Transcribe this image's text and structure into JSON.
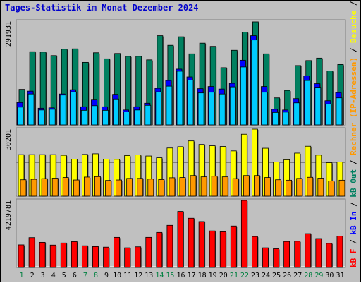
{
  "title": "Tages-Statistik im Monat Dezember 2024",
  "chart_data": [
    {
      "type": "bar",
      "panel": "top",
      "ymax_label": "291931",
      "ylim": [
        0,
        291931
      ],
      "categories": [
        "1",
        "2",
        "3",
        "4",
        "5",
        "6",
        "7",
        "8",
        "9",
        "10",
        "11",
        "12",
        "13",
        "14",
        "15",
        "16",
        "17",
        "18",
        "19",
        "20",
        "21",
        "22",
        "23",
        "24",
        "25",
        "26",
        "27",
        "28",
        "29",
        "30",
        "31"
      ],
      "series": [
        {
          "name": "Anfragen",
          "color": "#008060",
          "values": [
            100000,
            206000,
            205000,
            195000,
            213000,
            214000,
            176000,
            203000,
            186000,
            201000,
            193000,
            193000,
            183000,
            251000,
            224000,
            248000,
            200000,
            230000,
            221000,
            161000,
            210000,
            261000,
            290000,
            200000,
            76000,
            97000,
            167000,
            181000,
            188000,
            152000,
            170000
          ]
        },
        {
          "name": "Dateien",
          "color": "#0000ff",
          "values": [
            63000,
            95000,
            47000,
            48000,
            87000,
            99000,
            51000,
            72000,
            51000,
            86000,
            42000,
            51000,
            61000,
            103000,
            125000,
            157000,
            135000,
            102000,
            108000,
            101000,
            117000,
            182000,
            251000,
            108000,
            44000,
            42000,
            74000,
            138000,
            116000,
            68000,
            91000
          ]
        },
        {
          "name": "Seiten",
          "color": "#00ccff",
          "values": [
            50000,
            87000,
            42000,
            44000,
            84000,
            93000,
            41000,
            54000,
            41000,
            73000,
            37000,
            42000,
            55000,
            93000,
            109000,
            151000,
            126000,
            90000,
            92000,
            87000,
            107000,
            163000,
            239000,
            92000,
            35000,
            36000,
            62000,
            125000,
            106000,
            59000,
            76000
          ]
        }
      ]
    },
    {
      "type": "bar",
      "panel": "middle",
      "ymax_label": "30201",
      "ylim": [
        0,
        30201
      ],
      "categories": [
        "1",
        "2",
        "3",
        "4",
        "5",
        "6",
        "7",
        "8",
        "9",
        "10",
        "11",
        "12",
        "13",
        "14",
        "15",
        "16",
        "17",
        "18",
        "19",
        "20",
        "21",
        "22",
        "23",
        "24",
        "25",
        "26",
        "27",
        "28",
        "29",
        "30",
        "31"
      ],
      "series": [
        {
          "name": "Besuche",
          "color": "#ffff00",
          "values": [
            18700,
            18700,
            18700,
            18700,
            18400,
            16700,
            18800,
            19100,
            16700,
            16600,
            18300,
            18600,
            18100,
            17300,
            21700,
            22300,
            24900,
            23300,
            22700,
            22400,
            20400,
            27900,
            30201,
            21600,
            15400,
            16400,
            19400,
            22500,
            18500,
            15100,
            15400
          ]
        },
        {
          "name": "Rechner (IP-Adressen)",
          "color": "#ff9900",
          "values": [
            7400,
            7600,
            7900,
            8100,
            8400,
            7300,
            8600,
            8800,
            7100,
            7300,
            8000,
            8000,
            7700,
            7500,
            8300,
            8400,
            9300,
            8700,
            9000,
            8700,
            7900,
            9300,
            9300,
            8400,
            7400,
            7200,
            8000,
            8500,
            8100,
            6800,
            7200
          ]
        }
      ]
    },
    {
      "type": "bar",
      "panel": "bottom",
      "ymax_label": "4219781",
      "ylim": [
        0,
        4219781
      ],
      "categories": [
        "1",
        "2",
        "3",
        "4",
        "5",
        "6",
        "7",
        "8",
        "9",
        "10",
        "11",
        "12",
        "13",
        "14",
        "15",
        "16",
        "17",
        "18",
        "19",
        "20",
        "21",
        "22",
        "23",
        "24",
        "25",
        "26",
        "27",
        "28",
        "29",
        "30",
        "31"
      ],
      "series": [
        {
          "name": "kB F",
          "color": "#ff0000",
          "values": [
            1423000,
            1878000,
            1582000,
            1410000,
            1542000,
            1623000,
            1367000,
            1316000,
            1279000,
            1894000,
            1239000,
            1300000,
            1895000,
            2206000,
            2652000,
            3528000,
            3098000,
            2889000,
            2302000,
            2246000,
            2610000,
            4219781,
            1948000,
            1239000,
            1178000,
            1635000,
            1652000,
            2129000,
            1820000,
            1516000,
            1977000
          ]
        }
      ]
    }
  ],
  "right_labels": [
    {
      "text": "Anfragen",
      "color": "#008060"
    },
    {
      "text": " / ",
      "color": "#000000"
    },
    {
      "text": "Dateien",
      "color": "#0000ff"
    },
    {
      "text": " / ",
      "color": "#000000"
    },
    {
      "text": "Seiten",
      "color": "#00ccff"
    },
    {
      "text": " / ",
      "color": "#000000"
    },
    {
      "text": "Besuche",
      "color": "#ffff00"
    },
    {
      "text": " / ",
      "color": "#000000"
    },
    {
      "text": "Rechner (IP-Adressen)",
      "color": "#ff9900"
    },
    {
      "text": " / ",
      "color": "#000000"
    },
    {
      "text": "kB Out",
      "color": "#008060"
    },
    {
      "text": " / ",
      "color": "#000000"
    },
    {
      "text": "kB In",
      "color": "#0000ff"
    },
    {
      "text": " / ",
      "color": "#000000"
    },
    {
      "text": "kB F",
      "color": "#ff0000"
    }
  ],
  "weekend_days": [
    "1",
    "7",
    "8",
    "14",
    "15",
    "21",
    "22",
    "28",
    "29"
  ],
  "colors": {
    "weekend": "#008040",
    "weekday": "#000000",
    "panel_bg": "#c0c0c0"
  }
}
